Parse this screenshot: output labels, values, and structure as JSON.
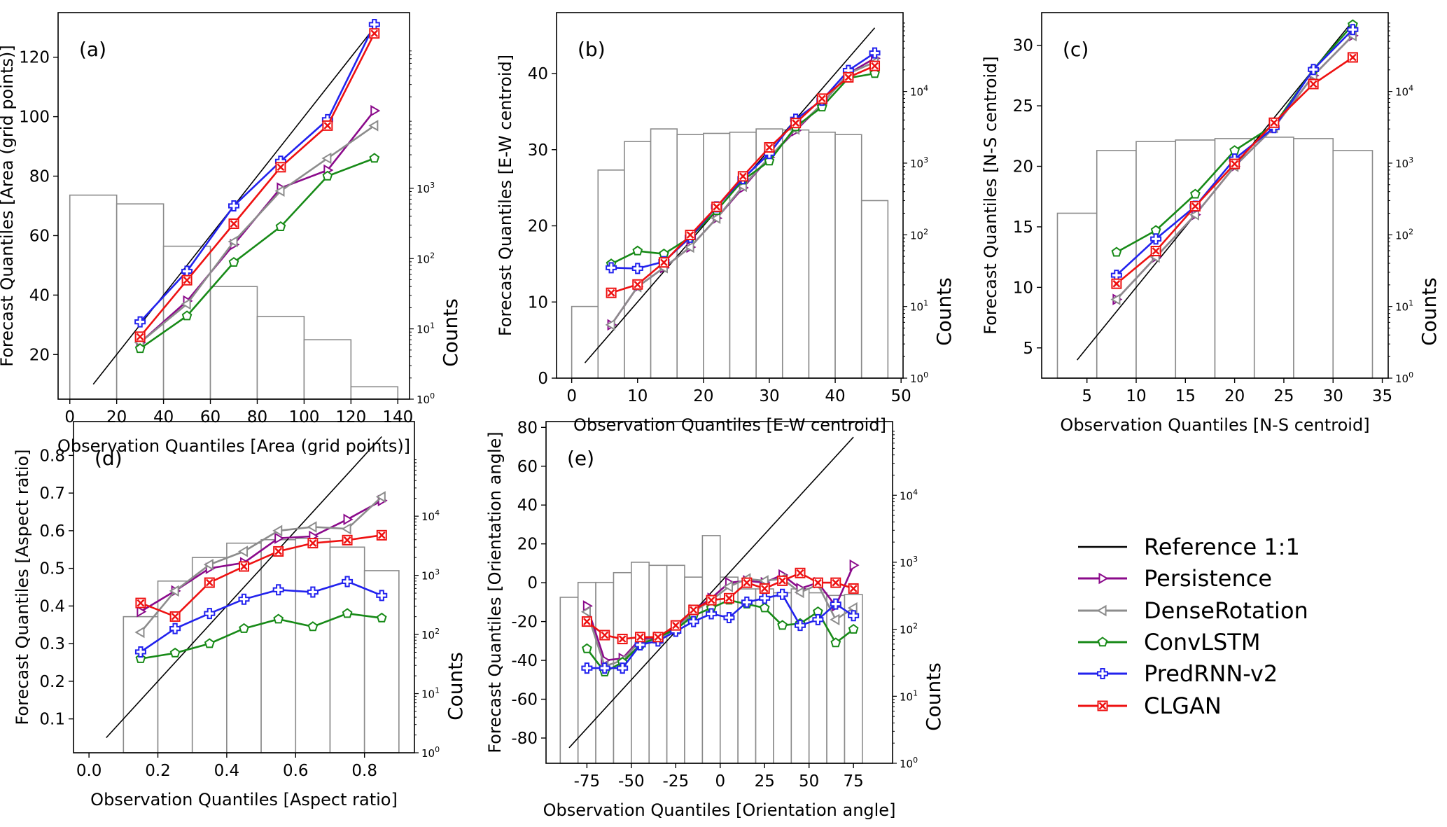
{
  "colors": {
    "reference": "#000000",
    "Persistence": "#8b0a8b",
    "DenseRotation": "#8c8c8c",
    "ConvLSTM": "#178a17",
    "PredRNN-v2": "#2222ee",
    "CLGAN": "#ee1111",
    "hist_edge": "#8a8a8a"
  },
  "legend": {
    "entries": [
      "Reference 1:1",
      "Persistence",
      "DenseRotation",
      "ConvLSTM",
      "PredRNN-v2",
      "CLGAN"
    ]
  },
  "chart_data": [
    {
      "type": "line",
      "panel": "(a)",
      "xlabel": "Observation Quantiles [Area (grid points)]",
      "ylabel": "Forecast Quantiles [Area (grid points)]",
      "counts_label": "Counts",
      "xlim": [
        -5,
        145
      ],
      "ylim": [
        5,
        135
      ],
      "xticks": [
        0,
        20,
        40,
        60,
        80,
        100,
        120,
        140
      ],
      "yticks": [
        20,
        40,
        60,
        80,
        100,
        120
      ],
      "reference": [
        [
          10,
          10
        ],
        [
          130,
          130
        ]
      ],
      "x": [
        30,
        50,
        70,
        90,
        110,
        130
      ],
      "series": [
        {
          "name": "Persistence",
          "values": [
            24,
            38,
            57,
            76,
            82,
            102
          ]
        },
        {
          "name": "DenseRotation",
          "values": [
            24,
            37,
            58,
            75,
            86,
            97
          ]
        },
        {
          "name": "ConvLSTM",
          "values": [
            22,
            33,
            51,
            63,
            80,
            86
          ]
        },
        {
          "name": "PredRNN-v2",
          "values": [
            31,
            48,
            70,
            85,
            99,
            131
          ]
        },
        {
          "name": "CLGAN",
          "values": [
            26,
            45,
            64,
            83,
            97,
            128
          ]
        }
      ],
      "hist": {
        "edges": [
          0,
          20,
          40,
          60,
          80,
          100,
          120,
          140
        ],
        "counts": [
          800,
          600,
          150,
          40,
          15,
          7,
          1.5
        ],
        "log_ticks": [
          "10^0",
          "10^1",
          "10^2",
          "10^3"
        ],
        "log_max": 5.5
      }
    },
    {
      "type": "line",
      "panel": "(b)",
      "xlabel": "Observation Quantiles [E-W centroid]",
      "ylabel": "Forecast Quantiles [E-W centroid]",
      "counts_label": "Counts",
      "xlim": [
        -2.3,
        50.3
      ],
      "ylim": [
        0,
        48
      ],
      "xticks": [
        0,
        10,
        20,
        30,
        40,
        50
      ],
      "yticks": [
        0,
        10,
        20,
        30,
        40
      ],
      "reference": [
        [
          2,
          2
        ],
        [
          46,
          46
        ]
      ],
      "x": [
        6,
        10,
        14,
        18,
        22,
        26,
        30,
        34,
        38,
        42,
        46
      ],
      "series": [
        {
          "name": "Persistence",
          "values": [
            7,
            12,
            14.5,
            17.2,
            21,
            25,
            29,
            32.5,
            36,
            40,
            42
          ]
        },
        {
          "name": "DenseRotation",
          "values": [
            7,
            12,
            14.5,
            17.2,
            21,
            25.2,
            29,
            32.7,
            36,
            40,
            41.5
          ]
        },
        {
          "name": "ConvLSTM",
          "values": [
            15,
            16.7,
            16.3,
            18.5,
            22,
            26,
            28.5,
            33,
            35.6,
            39.4,
            40
          ]
        },
        {
          "name": "PredRNN-v2",
          "values": [
            14.5,
            14.4,
            15.3,
            18.5,
            22.5,
            26.2,
            29.5,
            34,
            36.5,
            40.4,
            42.7
          ]
        },
        {
          "name": "CLGAN",
          "values": [
            11.2,
            12.3,
            15.2,
            18.8,
            22.5,
            26.5,
            30.3,
            33.5,
            36.7,
            39.5,
            41
          ]
        }
      ],
      "hist": {
        "edges": [
          0,
          4,
          8,
          12,
          16,
          20,
          24,
          28,
          32,
          36,
          40,
          44,
          48
        ],
        "counts": [
          10,
          800,
          2000,
          3000,
          2500,
          2600,
          2700,
          3000,
          2900,
          2700,
          2500,
          300
        ],
        "log_ticks": [
          "10^0",
          "10^1",
          "10^2",
          "10^3",
          "10^4"
        ],
        "log_max": 5.1
      }
    },
    {
      "type": "line",
      "panel": "(c)",
      "xlabel": "Observation Quantiles [N-S centroid]",
      "ylabel": "Forecast Quantiles [N-S centroid]",
      "counts_label": "Counts",
      "xlim": [
        0.4,
        35.6
      ],
      "ylim": [
        2.5,
        32.7
      ],
      "xticks": [
        5,
        10,
        15,
        20,
        25,
        30,
        35
      ],
      "yticks": [
        5,
        10,
        15,
        20,
        25,
        30
      ],
      "reference": [
        [
          4,
          4
        ],
        [
          32,
          32
        ]
      ],
      "x": [
        8,
        12,
        16,
        20,
        24,
        28,
        32
      ],
      "series": [
        {
          "name": "Persistence",
          "values": [
            9,
            12.5,
            16,
            20,
            23.2,
            27.5,
            30.8
          ]
        },
        {
          "name": "DenseRotation",
          "values": [
            9,
            12.5,
            16,
            20,
            23.2,
            27.5,
            30.8
          ]
        },
        {
          "name": "ConvLSTM",
          "values": [
            12.9,
            14.7,
            17.7,
            21.3,
            23.4,
            28,
            31.7
          ]
        },
        {
          "name": "PredRNN-v2",
          "values": [
            11,
            14,
            16.7,
            20.6,
            23.2,
            28,
            31.3
          ]
        },
        {
          "name": "CLGAN",
          "values": [
            10.3,
            13,
            16.7,
            20.2,
            23.6,
            26.8,
            29
          ]
        }
      ],
      "hist": {
        "edges": [
          2,
          6,
          10,
          14,
          18,
          22,
          26,
          30,
          34
        ],
        "counts": [
          200,
          1500,
          2000,
          2100,
          2200,
          2300,
          2200,
          1500
        ],
        "log_ticks": [
          "10^0",
          "10^1",
          "10^2",
          "10^3",
          "10^4"
        ],
        "log_max": 5.1
      }
    },
    {
      "type": "line",
      "panel": "(d)",
      "xlabel": "Observation Quantiles [Aspect ratio]",
      "ylabel": "Forecast Quantiles [Aspect ratio]",
      "counts_label": "Counts",
      "xlim": [
        -0.045,
        0.945
      ],
      "ylim": [
        0.01,
        0.89
      ],
      "xticks": [
        0.0,
        0.2,
        0.4,
        0.6,
        0.8
      ],
      "ytick_labels": [
        "0.1",
        "0.2",
        "0.3",
        "0.4",
        "0.5",
        "0.6",
        "0.7",
        "0.8"
      ],
      "yticks": [
        0.1,
        0.2,
        0.3,
        0.4,
        0.5,
        0.6,
        0.7,
        0.8
      ],
      "xtick_labels": [
        "0.0",
        "0.2",
        "0.4",
        "0.6",
        "0.8"
      ],
      "reference": [
        [
          0.05,
          0.05
        ],
        [
          0.85,
          0.85
        ]
      ],
      "x": [
        0.15,
        0.25,
        0.35,
        0.45,
        0.55,
        0.65,
        0.75,
        0.85
      ],
      "series": [
        {
          "name": "Persistence",
          "values": [
            0.385,
            0.44,
            0.5,
            0.515,
            0.58,
            0.585,
            0.63,
            0.68
          ]
        },
        {
          "name": "DenseRotation",
          "values": [
            0.33,
            0.44,
            0.51,
            0.545,
            0.6,
            0.61,
            0.605,
            0.69
          ]
        },
        {
          "name": "ConvLSTM",
          "values": [
            0.26,
            0.275,
            0.3,
            0.34,
            0.365,
            0.345,
            0.38,
            0.368
          ]
        },
        {
          "name": "PredRNN-v2",
          "values": [
            0.278,
            0.34,
            0.38,
            0.418,
            0.443,
            0.437,
            0.465,
            0.428
          ]
        },
        {
          "name": "CLGAN",
          "values": [
            0.408,
            0.372,
            0.462,
            0.505,
            0.545,
            0.567,
            0.575,
            0.588
          ]
        }
      ],
      "hist": {
        "edges": [
          0.1,
          0.2,
          0.3,
          0.4,
          0.5,
          0.6,
          0.7,
          0.8,
          0.9
        ],
        "counts": [
          200,
          800,
          2000,
          3500,
          4000,
          4200,
          3000,
          1200
        ],
        "log_ticks": [
          "10^0",
          "10^1",
          "10^2",
          "10^3",
          "10^4"
        ],
        "log_max": 5.6
      }
    },
    {
      "type": "line",
      "panel": "(e)",
      "xlabel": "Observation Quantiles [Orientation angle]",
      "ylabel": "Forecast Quantiles [Orientation angle]",
      "counts_label": "Counts",
      "xlim": [
        -98,
        97
      ],
      "ylim": [
        -93,
        83
      ],
      "xticks": [
        -75,
        -50,
        -25,
        0,
        25,
        50,
        75
      ],
      "yticks": [
        -80,
        -60,
        -40,
        -20,
        0,
        20,
        40,
        60,
        80
      ],
      "reference": [
        [
          -85,
          -85
        ],
        [
          75,
          75
        ]
      ],
      "x": [
        -75,
        -65,
        -55,
        -45,
        -35,
        -25,
        -15,
        -5,
        5,
        15,
        25,
        35,
        45,
        55,
        65,
        75
      ],
      "series": [
        {
          "name": "Persistence",
          "values": [
            -12,
            -40,
            -39,
            -29,
            -28,
            -23,
            -14,
            -8,
            0,
            1,
            0,
            4,
            -3,
            0,
            -12,
            9
          ]
        },
        {
          "name": "DenseRotation",
          "values": [
            -15,
            -43,
            -40,
            -30,
            -29,
            -24,
            -15,
            -9,
            -2,
            2,
            1,
            2,
            -5,
            -1,
            -19,
            -13
          ]
        },
        {
          "name": "ConvLSTM",
          "values": [
            -34,
            -46,
            -41,
            -32,
            -28,
            -24,
            -17,
            -13,
            -9,
            -11,
            -13,
            -22,
            -21,
            -15,
            -31,
            -24
          ]
        },
        {
          "name": "PredRNN-v2",
          "values": [
            -44,
            -44,
            -44,
            -32,
            -30,
            -25,
            -20,
            -16,
            -18,
            -10,
            -8,
            -6,
            -22,
            -19,
            -11,
            -17
          ]
        },
        {
          "name": "CLGAN",
          "values": [
            -20,
            -27,
            -29,
            -28,
            -28,
            -22,
            -14,
            -9,
            -8,
            0,
            -3,
            1,
            5,
            0,
            0,
            -3
          ]
        }
      ],
      "hist": {
        "edges": [
          -90,
          -80,
          -70,
          -60,
          -50,
          -40,
          -30,
          -20,
          -10,
          0,
          10,
          20,
          30,
          40,
          50,
          60,
          70,
          80
        ],
        "counts": [
          300,
          500,
          500,
          700,
          1000,
          900,
          900,
          600,
          2500,
          600,
          400,
          400,
          350,
          400,
          350,
          320,
          330
        ],
        "log_ticks": [
          "10^0",
          "10^1",
          "10^2",
          "10^3",
          "10^4"
        ],
        "log_max": 5.1
      }
    }
  ]
}
